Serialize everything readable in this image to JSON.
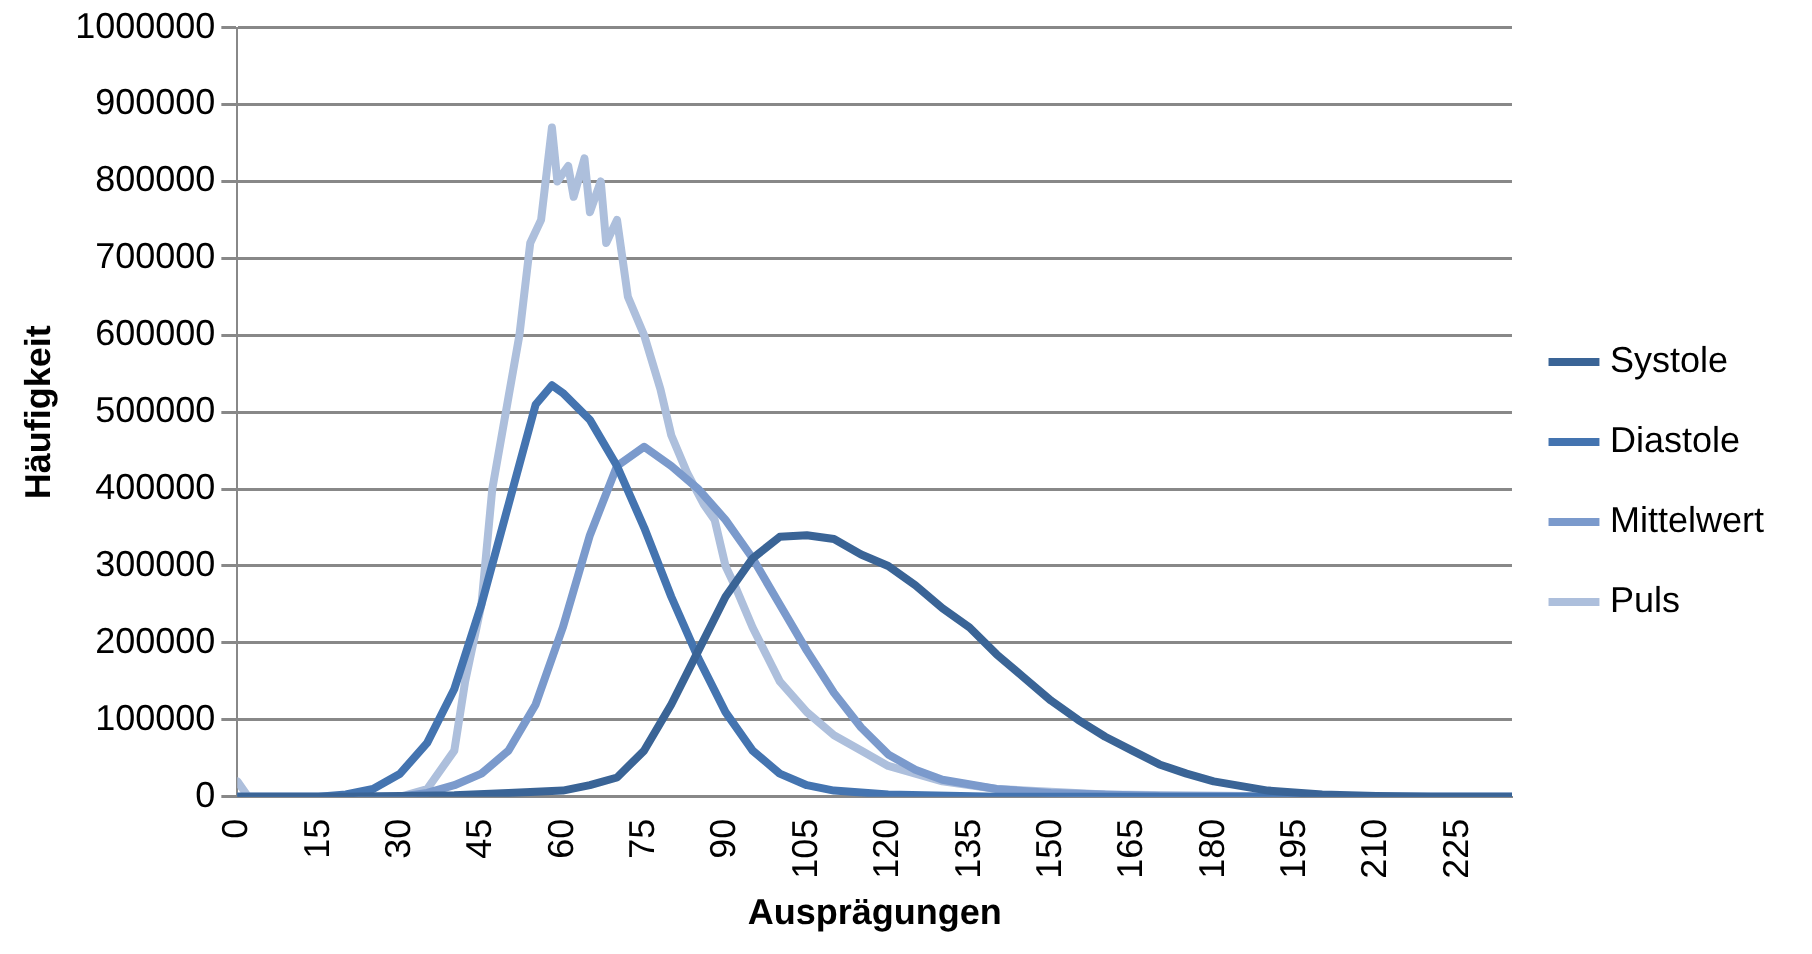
{
  "chart_data": {
    "type": "line",
    "xlabel": "Ausprägungen",
    "ylabel": "Häufigkeit",
    "xlim": [
      0,
      235
    ],
    "xticks": [
      0,
      15,
      30,
      45,
      60,
      75,
      90,
      105,
      120,
      135,
      150,
      165,
      180,
      195,
      210,
      225
    ],
    "ylim": [
      0,
      1000000
    ],
    "yticks": [
      0,
      100000,
      200000,
      300000,
      400000,
      500000,
      600000,
      700000,
      800000,
      900000,
      1000000
    ],
    "grid": "y",
    "legend": "right",
    "marker": "none",
    "line_style": "solid",
    "series": [
      {
        "name": "Systole",
        "color": "#3a6496",
        "x": [
          0,
          20,
          40,
          50,
          60,
          65,
          70,
          75,
          80,
          85,
          90,
          95,
          100,
          105,
          110,
          115,
          120,
          125,
          130,
          135,
          140,
          145,
          150,
          155,
          160,
          165,
          170,
          175,
          180,
          190,
          200,
          210,
          220,
          235
        ],
        "values": [
          0,
          0,
          2000,
          5000,
          8000,
          15000,
          25000,
          60000,
          120000,
          190000,
          260000,
          310000,
          338000,
          340000,
          335000,
          315000,
          300000,
          275000,
          245000,
          220000,
          185000,
          155000,
          125000,
          100000,
          78000,
          60000,
          42000,
          30000,
          20000,
          8000,
          3000,
          1000,
          0,
          0
        ]
      },
      {
        "name": "Diastole",
        "color": "#4474b0",
        "x": [
          0,
          15,
          20,
          25,
          30,
          35,
          40,
          45,
          50,
          55,
          58,
          60,
          65,
          70,
          75,
          80,
          85,
          90,
          95,
          100,
          105,
          110,
          120,
          140,
          235
        ],
        "values": [
          0,
          0,
          3000,
          10000,
          30000,
          70000,
          140000,
          250000,
          380000,
          510000,
          535000,
          525000,
          490000,
          430000,
          350000,
          260000,
          180000,
          110000,
          60000,
          30000,
          15000,
          8000,
          3000,
          0,
          0
        ]
      },
      {
        "name": "Mittelwert",
        "color": "#7b9acc",
        "x": [
          0,
          30,
          35,
          40,
          45,
          50,
          55,
          60,
          65,
          70,
          75,
          80,
          85,
          90,
          95,
          100,
          105,
          110,
          115,
          120,
          125,
          130,
          140,
          150,
          170,
          200,
          235
        ],
        "values": [
          0,
          0,
          5000,
          15000,
          30000,
          60000,
          120000,
          220000,
          340000,
          430000,
          455000,
          430000,
          400000,
          360000,
          310000,
          250000,
          190000,
          135000,
          90000,
          55000,
          35000,
          22000,
          10000,
          5000,
          1000,
          0,
          0
        ]
      },
      {
        "name": "Puls",
        "color": "#adbfdc",
        "x": [
          0,
          2,
          30,
          35,
          40,
          42,
          45,
          47,
          50,
          52,
          54,
          56,
          58,
          59,
          61,
          62,
          64,
          65,
          67,
          68,
          70,
          72,
          75,
          78,
          80,
          83,
          86,
          88,
          90,
          92,
          95,
          100,
          105,
          110,
          115,
          120,
          130,
          140,
          160,
          200,
          235
        ],
        "values": [
          20000,
          0,
          0,
          10000,
          60000,
          150000,
          250000,
          400000,
          520000,
          600000,
          720000,
          750000,
          870000,
          800000,
          820000,
          780000,
          830000,
          760000,
          800000,
          720000,
          750000,
          650000,
          600000,
          530000,
          470000,
          420000,
          380000,
          360000,
          300000,
          270000,
          220000,
          150000,
          110000,
          80000,
          60000,
          40000,
          20000,
          10000,
          3000,
          0,
          0
        ]
      }
    ]
  }
}
